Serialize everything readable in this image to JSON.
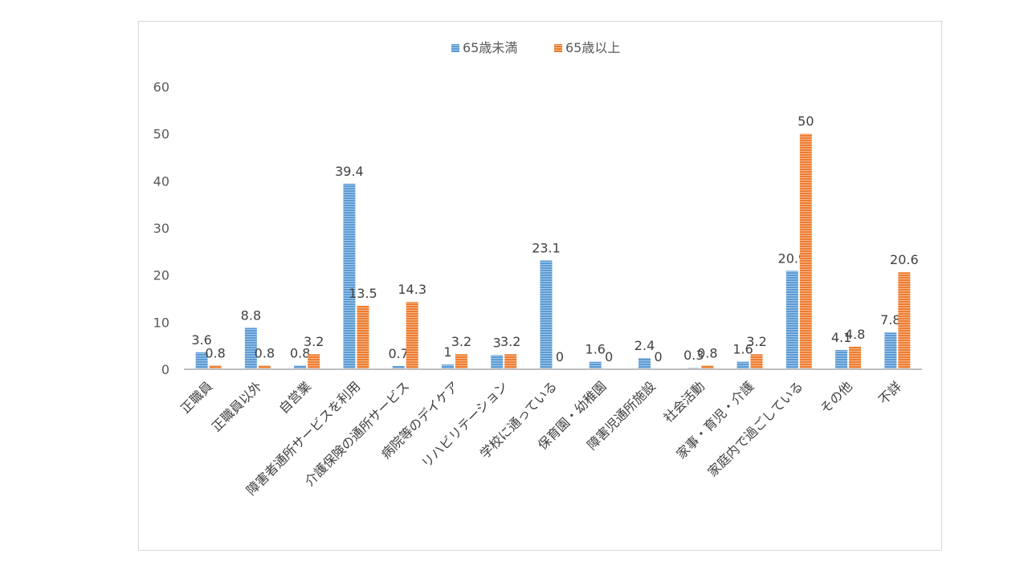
{
  "chart_data": {
    "type": "bar",
    "title": "",
    "xlabel": "",
    "ylabel": "",
    "ylim": [
      0,
      60
    ],
    "yticks": [
      0,
      10,
      20,
      30,
      40,
      50,
      60
    ],
    "grid": false,
    "legend_position": "top",
    "categories": [
      "正職員",
      "正職員以外",
      "自営業",
      "障害者通所サービスを利用",
      "介護保険の通所サービス",
      "病院等のデイケア",
      "リハビリテーション",
      "学校に通っている",
      "保育園・幼稚園",
      "障害児通所施設",
      "社会活動",
      "家事・育児・介護",
      "家庭内で過ごしている",
      "その他",
      "不詳"
    ],
    "series": [
      {
        "name": "65歳未満",
        "color": "#5b9bd5",
        "values": [
          3.6,
          8.8,
          0.8,
          39.4,
          0.7,
          1,
          3,
          23.1,
          1.6,
          2.4,
          0.3,
          1.6,
          20.9,
          4.1,
          7.8
        ]
      },
      {
        "name": "65歳以上",
        "color": "#ed7d31",
        "values": [
          0.8,
          0.8,
          3.2,
          13.5,
          14.3,
          3.2,
          3.2,
          0,
          0,
          0,
          0.8,
          3.2,
          50,
          4.8,
          20.6
        ]
      }
    ]
  }
}
